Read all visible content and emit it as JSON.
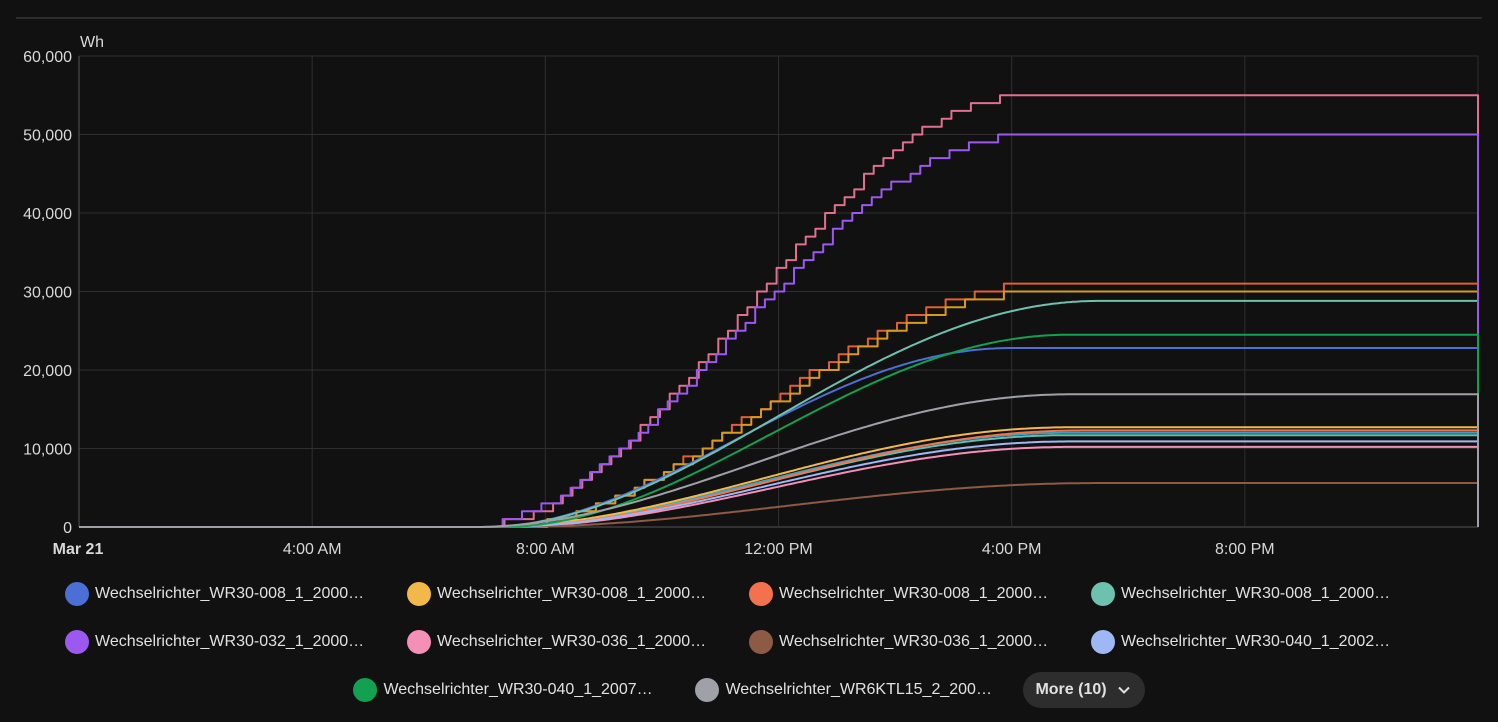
{
  "chart_data": {
    "type": "line",
    "ylabel": "Wh",
    "ylim": [
      0,
      60000
    ],
    "yticks": [
      0,
      10000,
      20000,
      30000,
      40000,
      50000,
      60000
    ],
    "ytick_labels": [
      "0",
      "10,000",
      "20,000",
      "30,000",
      "40,000",
      "50,000",
      "60,000"
    ],
    "xlim": [
      0,
      24
    ],
    "xticks": [
      0,
      4,
      8,
      12,
      16,
      20
    ],
    "xtick_labels": [
      "Mar 21",
      "4:00 AM",
      "8:00 AM",
      "12:00 PM",
      "4:00 PM",
      "8:00 PM"
    ],
    "series": [
      {
        "name": "Wechselrichter_WR30-008_1_2000…",
        "color": "#4b6fd4",
        "start": 7.0,
        "end": 16.0,
        "final": 22800,
        "step": false
      },
      {
        "name": "Wechselrichter_WR30-008_1_2000…",
        "color": "#f2b94a",
        "start": 7.0,
        "end": 17.0,
        "final": 12700,
        "step": false
      },
      {
        "name": "Wechselrichter_WR30-008_1_2000…",
        "color": "#f4714e",
        "start": 7.2,
        "end": 17.2,
        "final": 12300,
        "step": false
      },
      {
        "name": "Wechselrichter_WR30-008_1_2000…",
        "color": "#6cc2ae",
        "start": 7.0,
        "end": 17.5,
        "final": 28800,
        "step": false
      },
      {
        "name": "Wechselrichter_WR30-032_1_2000…",
        "color": "#9b59f0",
        "start": 6.6,
        "end": 16.3,
        "final": 50000,
        "step": true
      },
      {
        "name": "Wechselrichter_WR30-036_1_2000…",
        "color": "#f48fb8",
        "start": 7.3,
        "end": 17.0,
        "final": 10200,
        "step": false
      },
      {
        "name": "Wechselrichter_WR30-036_1_2000…",
        "color": "#8c5a45",
        "start": 7.4,
        "end": 17.5,
        "final": 5600,
        "step": false
      },
      {
        "name": "Wechselrichter_WR30-040_1_2002…",
        "color": "#9eb8f5",
        "start": 7.2,
        "end": 17.0,
        "final": 10900,
        "step": false
      },
      {
        "name": "Wechselrichter_WR30-040_1_2007…",
        "color": "#12a150",
        "start": 7.3,
        "end": 17.0,
        "final": 24500,
        "step": false
      },
      {
        "name": "Wechselrichter_WR6KTL15_2_200…",
        "color": "#9ea2a8",
        "start": 6.8,
        "end": 17.0,
        "final": 16900,
        "step": false
      }
    ],
    "extra_series": [
      {
        "color": "#e0708e",
        "start": 6.8,
        "end": 16.3,
        "final": 55000,
        "step": true
      },
      {
        "color": "#e0602e",
        "start": 7.2,
        "end": 16.6,
        "final": 31000,
        "step": true
      },
      {
        "color": "#d89a1e",
        "start": 7.2,
        "end": 16.6,
        "final": 30000,
        "step": true
      },
      {
        "color": "#3d9fc4",
        "start": 7.0,
        "end": 17.0,
        "final": 12000,
        "step": false
      },
      {
        "color": "#5ec0b3",
        "start": 7.1,
        "end": 17.0,
        "final": 11700,
        "step": false
      }
    ]
  },
  "legend": {
    "more_label": "More (10)"
  }
}
